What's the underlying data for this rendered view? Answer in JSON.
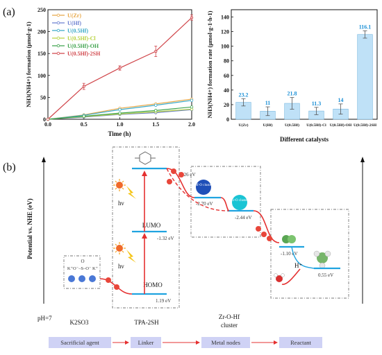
{
  "panel_labels": {
    "a": "(a)",
    "b": "(b)"
  },
  "chart_data": [
    {
      "type": "line",
      "xlabel": "Time (h)",
      "ylabel": "NH3(NH4+) formation (µmol·g-1)",
      "xlim": [
        0,
        2.0
      ],
      "ylim": [
        0,
        250
      ],
      "xticks": [
        "0.0",
        "0.5",
        "1.0",
        "1.5",
        "2.0"
      ],
      "yticks": [
        "0",
        "50",
        "100",
        "150",
        "200",
        "250"
      ],
      "x": [
        0,
        0.5,
        1.0,
        1.5,
        2.0
      ],
      "legend_position": "top-left",
      "series": [
        {
          "name": "U(Zr)",
          "color": "#e8a848",
          "values": [
            0,
            10,
            25,
            35,
            46
          ]
        },
        {
          "name": "U(Hf)",
          "color": "#6b7fd0",
          "values": [
            0,
            5,
            11,
            15,
            22
          ]
        },
        {
          "name": "U(0.5Hf)",
          "color": "#3aa9c8",
          "values": [
            0,
            9,
            22,
            32,
            43
          ]
        },
        {
          "name": "U(0.5Hf)-Cl",
          "color": "#b8d240",
          "values": [
            0,
            6,
            12,
            17,
            23
          ]
        },
        {
          "name": "U(0.5Hf)-OH",
          "color": "#3fa34d",
          "values": [
            0,
            7,
            14,
            20,
            28
          ]
        },
        {
          "name": "U(0.5Hf)-2SH",
          "color": "#d0454a",
          "values": [
            0,
            75,
            117,
            155,
            232
          ]
        }
      ]
    },
    {
      "type": "bar",
      "xlabel": "Different catalysts",
      "ylabel": "NH3(NH4+) formation rate (µmol·g-1·h-1)",
      "ylim": [
        0,
        150
      ],
      "yticks": [
        "0",
        "20",
        "40",
        "60",
        "80",
        "100",
        "120",
        "140"
      ],
      "categories": [
        "U(Zr)",
        "U(Hf)",
        "U(0.5Hf)",
        "U(0.5Hf)-Cl",
        "U(0.5Hf)-OH",
        "U(0.5Hf)-2SH"
      ],
      "values": [
        23.2,
        11,
        21.8,
        11.3,
        14,
        116.1
      ],
      "value_labels": [
        "23.2",
        "11",
        "21.8",
        "11.3",
        "14",
        "116.1"
      ],
      "errors": [
        5,
        6,
        8,
        5,
        7,
        5
      ],
      "color": "#bfe1f7"
    }
  ],
  "diagram": {
    "y_axis_label": "Potential vs. NHE (eV)",
    "ph_label": "pH=7",
    "levels": {
      "lumo_label": "LUMO",
      "homo_label": "HOMO",
      "top_ev": "-3.26 eV",
      "lumo_ev": "-1.32 eV",
      "homo_ev": "1.19 eV",
      "hf_ev": "-2.70 eV",
      "zr_ev": "-2.44 eV",
      "n2_ev": "-1.10 eV",
      "nh3_ev": "0.55 eV"
    },
    "hv_label": "hν",
    "hplus_label": "H⁺",
    "clusters": {
      "hf": "Hf-O cluster",
      "zr": "Zr-O cluster"
    },
    "molecule": {
      "formula": "K⁺O⁻–S–O⁻ K⁺",
      "top": "O"
    },
    "species": {
      "k2so3": "K2SO3",
      "tpa": "TPA-2SH",
      "zr_o_hf_line1": "Zr-O-Hf",
      "zr_o_hf_line2": "cluster"
    },
    "flow": [
      "Sacrificial agent",
      "Linker",
      "Metal nodes",
      "Reactant"
    ]
  }
}
